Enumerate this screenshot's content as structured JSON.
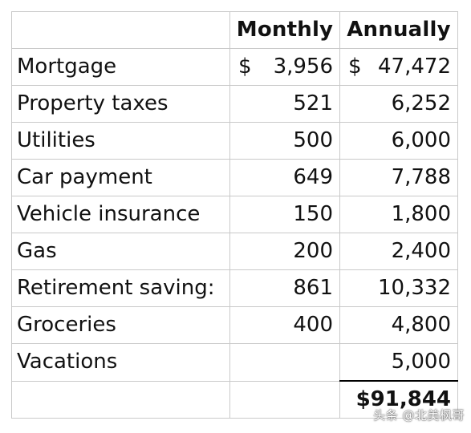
{
  "table": {
    "headers": {
      "label": "",
      "monthly": "Monthly",
      "annually": "Annually"
    },
    "currency_symbol": "$",
    "rows": [
      {
        "label": "Mortgage",
        "monthly": "3,956",
        "annually": "47,472",
        "with_currency": true
      },
      {
        "label": "Property taxes",
        "monthly": "521",
        "annually": "6,252"
      },
      {
        "label": "Utilities",
        "monthly": "500",
        "annually": "6,000"
      },
      {
        "label": "Car payment",
        "monthly": "649",
        "annually": "7,788"
      },
      {
        "label": "Vehicle insurance",
        "monthly": "150",
        "annually": "1,800"
      },
      {
        "label": "Gas",
        "monthly": "200",
        "annually": "2,400"
      },
      {
        "label": "Retirement saving:",
        "monthly": "861",
        "annually": "10,332"
      },
      {
        "label": "Groceries",
        "monthly": "400",
        "annually": "4,800"
      },
      {
        "label": "Vacations",
        "monthly": "",
        "annually": "5,000"
      }
    ],
    "total": {
      "label": "",
      "monthly": "",
      "annually": "$91,844"
    }
  },
  "watermark": "头条 @北美枫哥"
}
